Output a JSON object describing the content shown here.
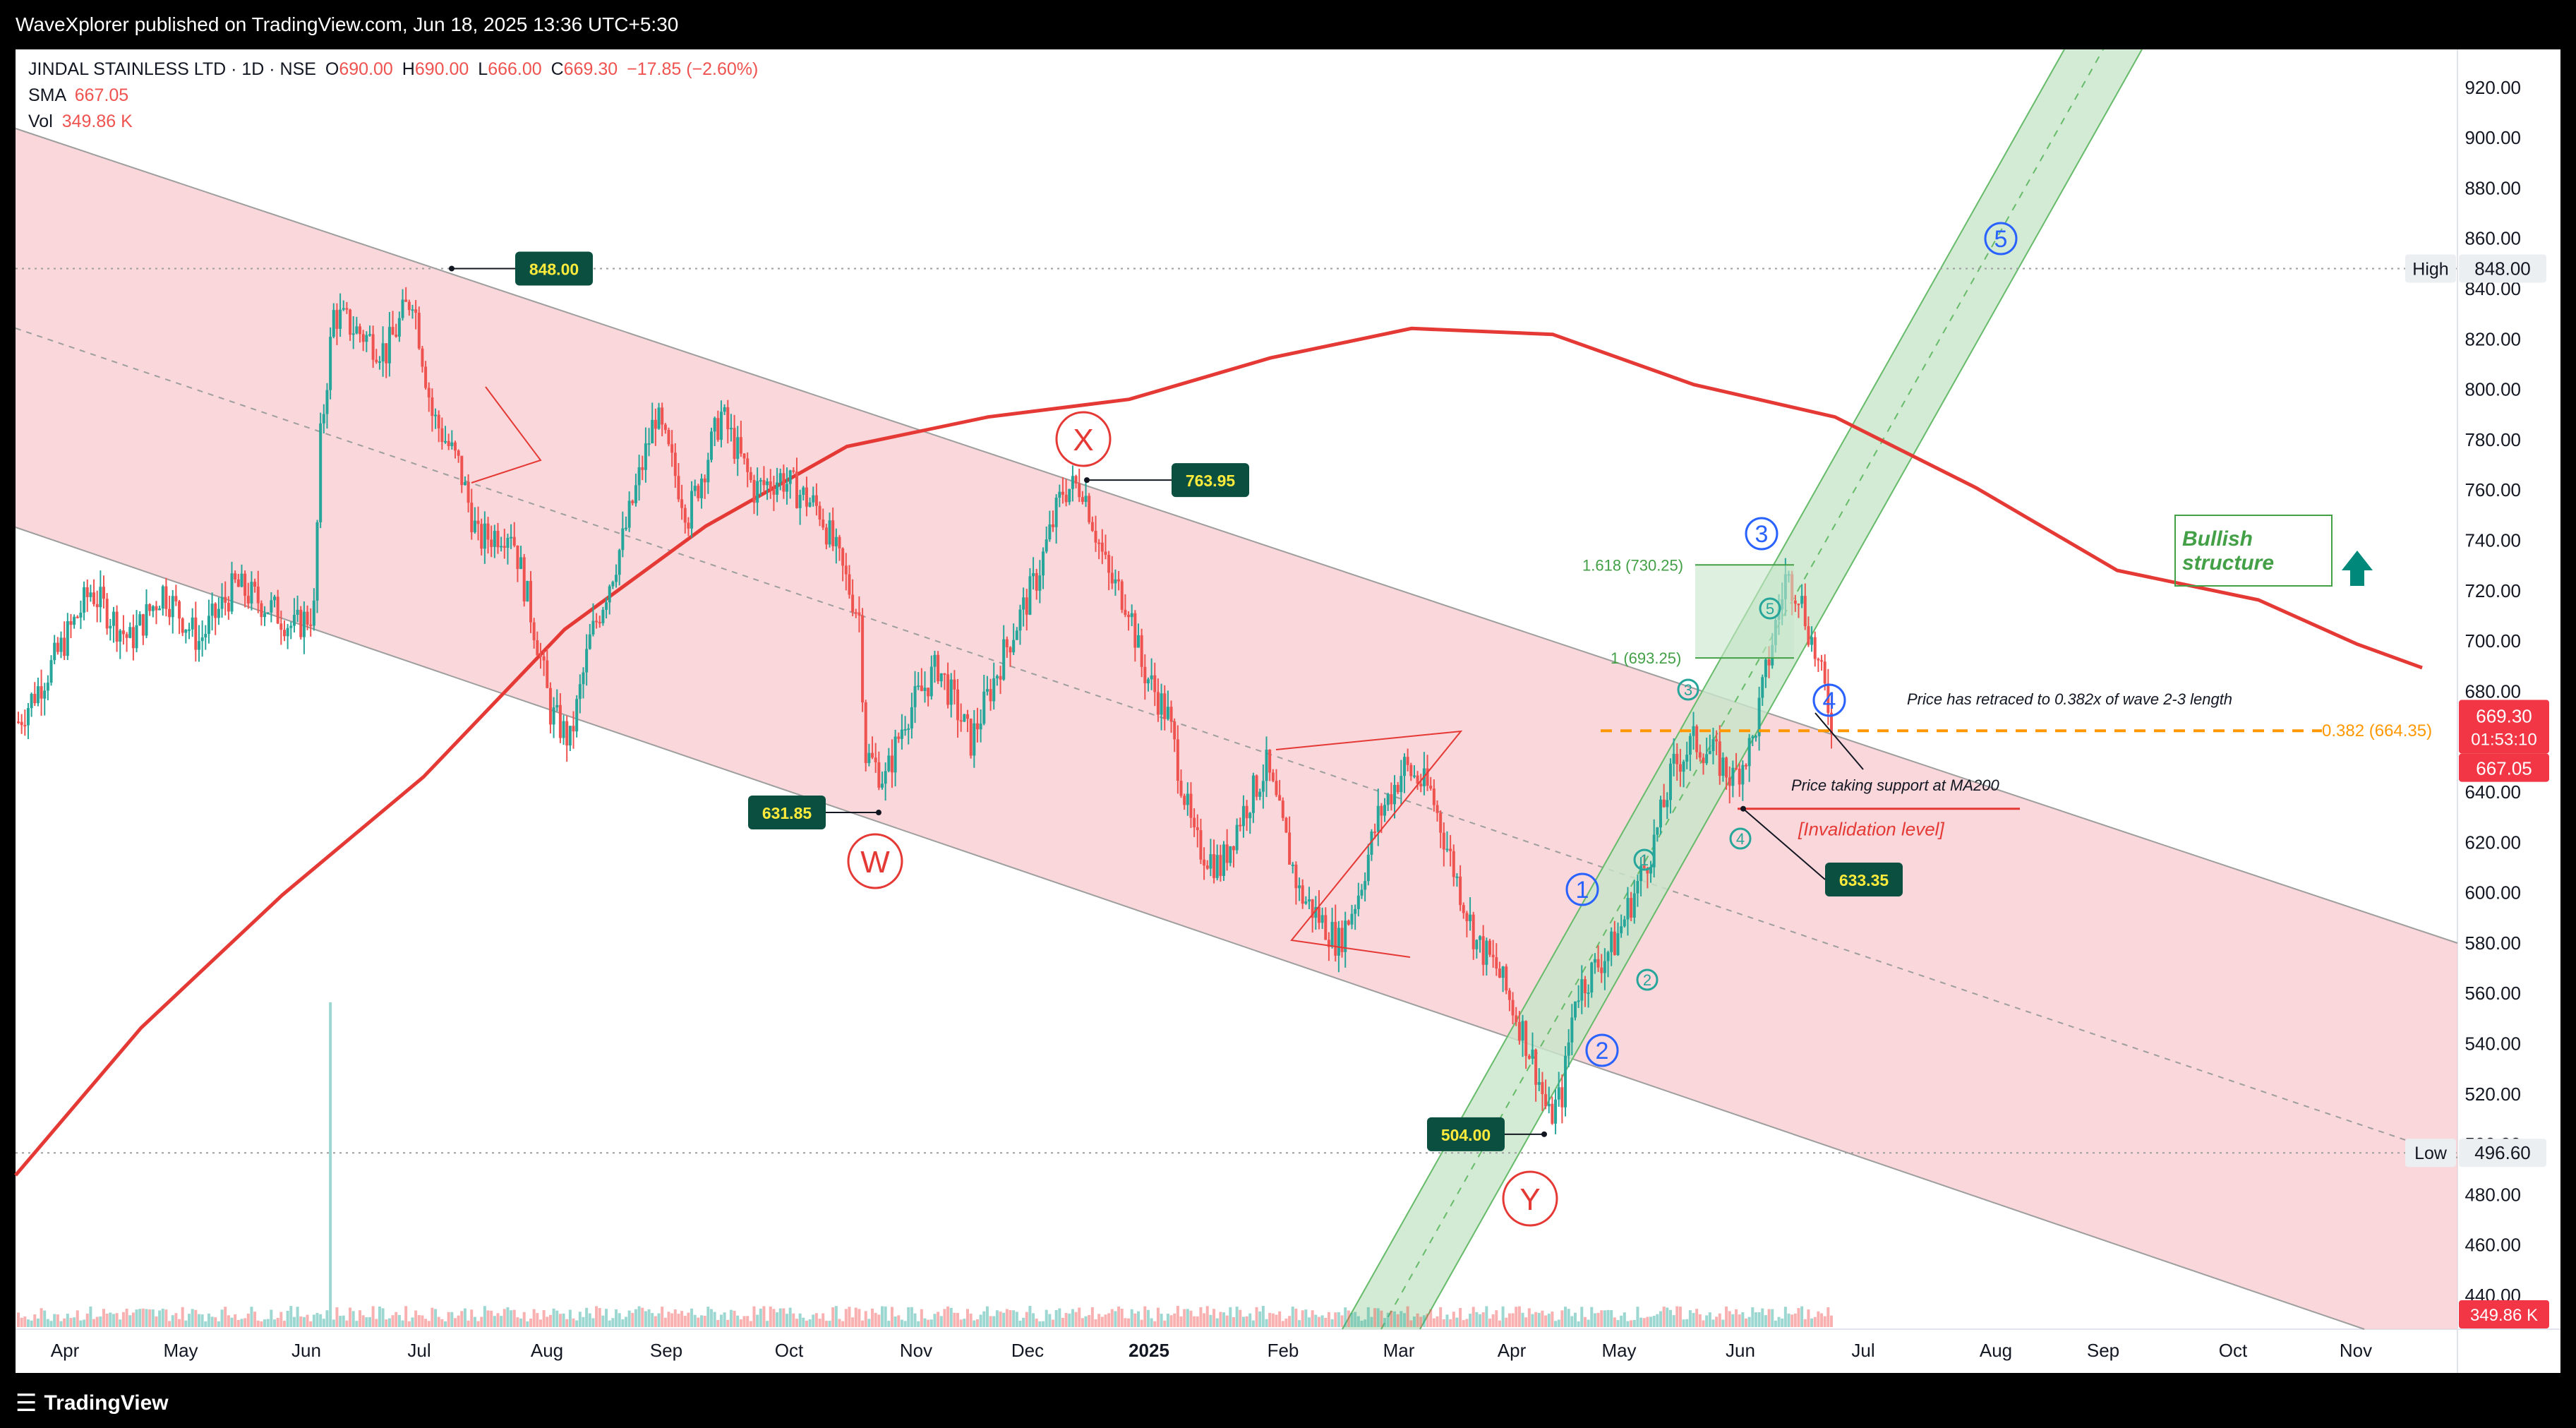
{
  "header": {
    "publisher": "WaveXplorer published on TradingView.com, Jun 18, 2025 13:36 UTC+5:30"
  },
  "legend": {
    "symbol_line": "JINDAL STAINLESS LTD · 1D · NSE",
    "o_label": "O",
    "o_value": "690.00",
    "h_label": "H",
    "h_value": "690.00",
    "l_label": "L",
    "l_value": "666.00",
    "c_label": "C",
    "c_value": "669.30",
    "change": "−17.85 (−2.60%)",
    "sma_label": "SMA",
    "sma_value": "667.05",
    "vol_label": "Vol",
    "vol_value": "349.86 K"
  },
  "footer": {
    "brand": "TradingView"
  },
  "colors": {
    "channel_fill": "#f7c9cf",
    "up_channel_fill": "#c8e6c9",
    "bull": "#26a69a",
    "bear": "#ef5350",
    "sma": "#e53935",
    "wave_blue": "#2962ff",
    "wave_red": "#e53935",
    "fib_green": "#43a047",
    "orange": "#ff9800",
    "price_tag_bg": "#0b4f41"
  },
  "chart_data": {
    "type": "candlestick",
    "ylim": [
      430,
      930
    ],
    "y_ticks": [
      "440.00",
      "460.00",
      "480.00",
      "500.00",
      "520.00",
      "540.00",
      "560.00",
      "580.00",
      "600.00",
      "620.00",
      "640.00",
      "660.00",
      "680.00",
      "700.00",
      "720.00",
      "740.00",
      "760.00",
      "780.00",
      "800.00",
      "820.00",
      "840.00",
      "860.00",
      "880.00",
      "900.00",
      "920.00"
    ],
    "x_ticks": [
      "Apr",
      "May",
      "Jun",
      "Jul",
      "Aug",
      "Sep",
      "Oct",
      "Nov",
      "Dec",
      "2025",
      "Feb",
      "Mar",
      "Apr",
      "May",
      "Jun",
      "Jul",
      "Aug",
      "Sep",
      "Oct",
      "Nov"
    ],
    "pivots": [
      {
        "label": "848.00",
        "value": 848.0
      },
      {
        "label": "763.95",
        "value": 763.95
      },
      {
        "label": "631.85",
        "value": 631.85
      },
      {
        "label": "504.00",
        "value": 504.0
      },
      {
        "label": "633.35",
        "value": 633.35
      }
    ],
    "wave_labels_major": [
      "W",
      "X",
      "Y"
    ],
    "wave_labels_impulse": [
      "1",
      "2",
      "3",
      "4",
      "5"
    ],
    "wave_labels_minor": [
      "1",
      "2",
      "3",
      "4",
      "5"
    ],
    "fib_levels": [
      {
        "label": "1.618 (730.25)",
        "value": 730.25
      },
      {
        "label": "1 (693.25)",
        "value": 693.25
      },
      {
        "label": "0.382 (664.35)",
        "value": 664.35
      }
    ],
    "annotations": {
      "retrace": "Price has retraced to 0.382x of wave 2-3 length",
      "support": "Price taking support at MA200",
      "invalidation": "[Invalidation level]",
      "bullish_line1": "Bullish",
      "bullish_line2": "structure"
    },
    "price_labels": {
      "high_label": "High",
      "high_value": "848.00",
      "low_label": "Low",
      "low_value": "496.60",
      "last_price": "669.30",
      "countdown": "01:53:10",
      "sma_value": "667.05",
      "volume": "349.86 K"
    },
    "levels": {
      "high": 848.0,
      "low": 496.6,
      "last": 669.3,
      "sma": 667.05,
      "invalidation": 633.35
    }
  }
}
